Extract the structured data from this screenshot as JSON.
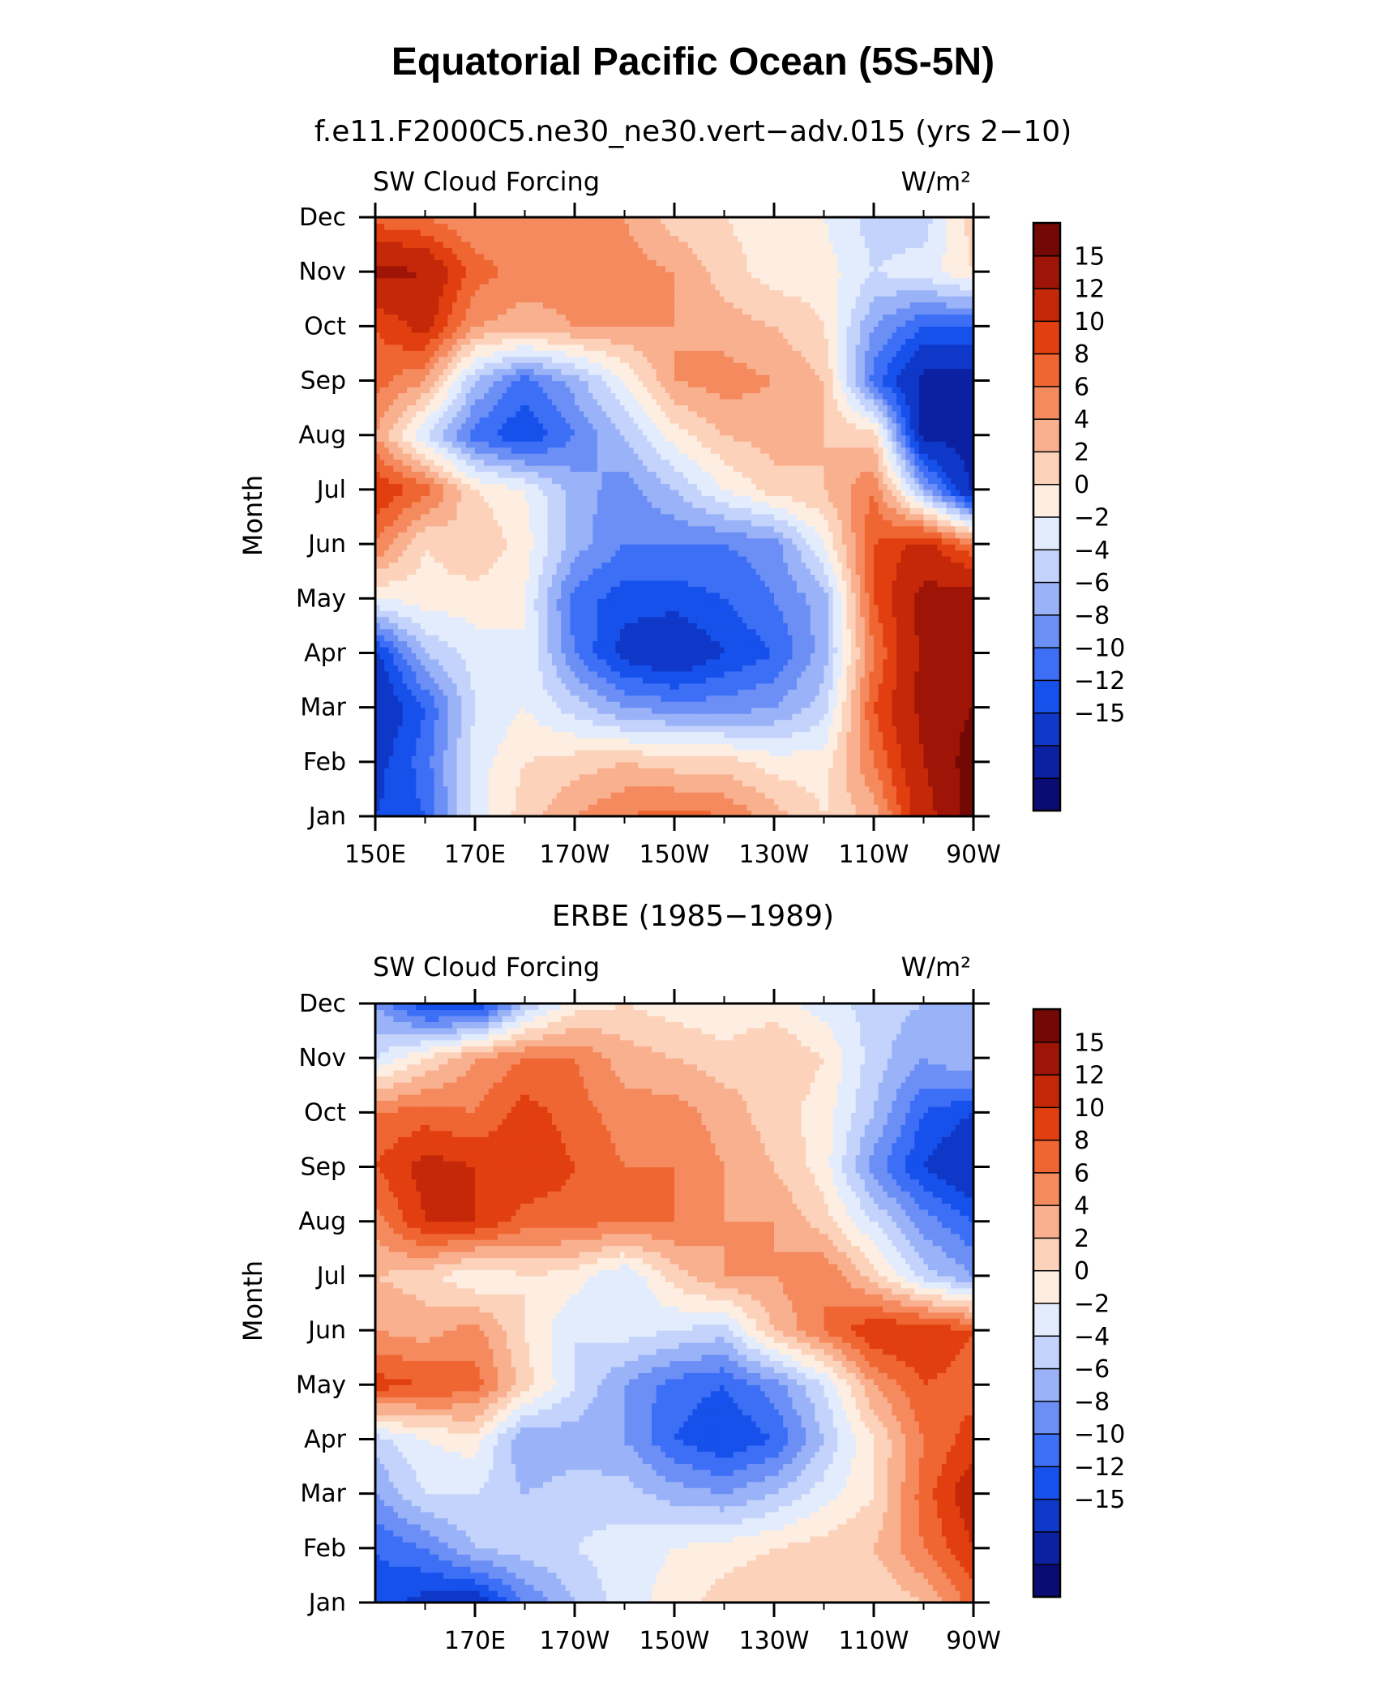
{
  "figure": {
    "title": "Equatorial Pacific Ocean (5S-5N)"
  },
  "colors": {
    "palette": [
      "#0b0c73",
      "#0c21a1",
      "#0f38c8",
      "#1751eb",
      "#3d6ff6",
      "#6c8ff6",
      "#9ab2f8",
      "#c4d3fb",
      "#e3ecfd",
      "#fdeee1",
      "#fcd2bb",
      "#f9b08f",
      "#f48a5e",
      "#ef6633",
      "#e23f10",
      "#c52808",
      "#9e1407",
      "#730805"
    ],
    "levels": [
      -16,
      -15,
      -12,
      -10,
      -8,
      -6,
      -4,
      -2,
      0,
      2,
      4,
      6,
      8,
      10,
      12,
      15,
      17,
      19
    ]
  },
  "colorbar": {
    "labels": [
      "15",
      "12",
      "10",
      "8",
      "6",
      "4",
      "2",
      "0",
      "−2",
      "−4",
      "−6",
      "−8",
      "−10",
      "−12",
      "−15"
    ]
  },
  "chart_data": [
    {
      "type": "heatmap",
      "subtitle": "f.e11.F2000C5.ne30_ne30.vert−adv.015 (yrs 2−10)",
      "left_label": "SW Cloud Forcing",
      "right_label": "W/m²",
      "ylabel": "Month",
      "xlabel": "",
      "xlim": [
        150,
        270
      ],
      "x_ticks": [
        150,
        170,
        190,
        210,
        230,
        250,
        270
      ],
      "x_tick_labels": [
        "150E",
        "170E",
        "170W",
        "150W",
        "130W",
        "110W",
        "90W"
      ],
      "y_tick_labels": [
        "Jan",
        "Feb",
        "Mar",
        "Apr",
        "May",
        "Jun",
        "Jul",
        "Aug",
        "Sep",
        "Oct",
        "Nov",
        "Dec"
      ],
      "x": [
        150,
        160,
        170,
        180,
        190,
        200,
        210,
        220,
        230,
        240,
        250,
        260,
        270
      ],
      "y": [
        "Jan",
        "Feb",
        "Mar",
        "Apr",
        "May",
        "Jun",
        "Jul",
        "Aug",
        "Sep",
        "Oct",
        "Nov",
        "Dec"
      ],
      "z": [
        [
          -12,
          -10,
          -1,
          3,
          6,
          8,
          9,
          8,
          5,
          2,
          5,
          14,
          18
        ],
        [
          -13,
          -9,
          -1,
          2,
          3,
          4,
          3,
          3,
          1,
          1,
          8,
          15,
          18
        ],
        [
          -15,
          -10,
          -2,
          0,
          -3,
          -6,
          -7,
          -7,
          -6,
          -3,
          10,
          16,
          17
        ],
        [
          -13,
          -4,
          -1,
          0,
          -8,
          -13,
          -15,
          -12,
          -10,
          -5,
          8,
          16,
          17
        ],
        [
          0,
          1,
          1,
          0,
          -9,
          -11,
          -11,
          -10,
          -8,
          -5,
          10,
          16,
          17
        ],
        [
          8,
          2,
          4,
          1,
          -5,
          -8,
          -8,
          -8,
          -7,
          0,
          10,
          13,
          8
        ],
        [
          12,
          9,
          2,
          0,
          -5,
          -7,
          -4,
          0,
          3,
          4,
          8,
          -5,
          -16
        ],
        [
          6,
          -2,
          -9,
          -12,
          -8,
          -4,
          1,
          4,
          5,
          4,
          3,
          -16,
          -16
        ],
        [
          9,
          6,
          -4,
          -9,
          -5,
          0,
          6,
          7,
          6,
          4,
          -9,
          -16,
          -16
        ],
        [
          10,
          13,
          6,
          5,
          6,
          6,
          6,
          5,
          4,
          2,
          -6,
          -10,
          -10
        ],
        [
          16,
          15,
          9,
          7,
          7,
          7,
          6,
          3,
          1,
          1,
          -2,
          -1,
          2
        ],
        [
          9,
          8,
          6,
          7,
          8,
          6,
          3,
          2,
          1,
          0,
          -3,
          -3,
          3
        ]
      ]
    },
    {
      "type": "heatmap",
      "subtitle": "ERBE (1985−1989)",
      "left_label": "SW Cloud Forcing",
      "right_label": "W/m²",
      "ylabel": "Month",
      "xlabel": "",
      "xlim": [
        150,
        270
      ],
      "x_ticks": [
        170,
        190,
        210,
        230,
        250,
        270
      ],
      "x_tick_labels": [
        "170E",
        "170W",
        "150W",
        "130W",
        "110W",
        "90W"
      ],
      "y_tick_labels": [
        "Jan",
        "Feb",
        "Mar",
        "Apr",
        "May",
        "Jun",
        "Jul",
        "Aug",
        "Sep",
        "Oct",
        "Nov",
        "Dec"
      ],
      "x": [
        150,
        160,
        170,
        180,
        190,
        200,
        210,
        220,
        230,
        240,
        250,
        260,
        270
      ],
      "y": [
        "Jan",
        "Feb",
        "Mar",
        "Apr",
        "May",
        "Jun",
        "Jul",
        "Aug",
        "Sep",
        "Oct",
        "Nov",
        "Dec"
      ],
      "z": [
        [
          -11,
          -13,
          -14,
          -8,
          -4,
          -1,
          1,
          3,
          4,
          4,
          2,
          4,
          9
        ],
        [
          -10,
          -8,
          -4,
          -3,
          -2,
          -1,
          0,
          1,
          2,
          3,
          4,
          8,
          12
        ],
        [
          -6,
          -2,
          -2,
          -4,
          -3,
          -3,
          -5,
          -6,
          -4,
          -1,
          2,
          9,
          14
        ],
        [
          -3,
          0,
          1,
          -6,
          -5,
          -6,
          -10,
          -12,
          -10,
          -4,
          2,
          8,
          11
        ],
        [
          11,
          10,
          9,
          3,
          -2,
          -6,
          -9,
          -10,
          -7,
          -2,
          6,
          10,
          9
        ],
        [
          6,
          5,
          7,
          2,
          -2,
          -1,
          -2,
          -3,
          4,
          8,
          12,
          12,
          10
        ],
        [
          4,
          3,
          0,
          2,
          1,
          -2,
          3,
          6,
          6,
          8,
          3,
          -3,
          -6
        ],
        [
          7,
          12,
          12,
          9,
          9,
          8,
          8,
          6,
          6,
          3,
          -2,
          -7,
          -10
        ],
        [
          10,
          13,
          12,
          12,
          10,
          8,
          8,
          6,
          4,
          1,
          -7,
          -12,
          -15
        ],
        [
          8,
          9,
          8,
          11,
          9,
          7,
          7,
          5,
          3,
          1,
          -4,
          -10,
          -12
        ],
        [
          -2,
          2,
          6,
          8,
          8,
          5,
          4,
          3,
          4,
          2,
          -3,
          -6,
          -4
        ],
        [
          -6,
          -12,
          -13,
          -4,
          1,
          2,
          1,
          0,
          1,
          -1,
          -3,
          -4,
          -5
        ]
      ]
    }
  ]
}
